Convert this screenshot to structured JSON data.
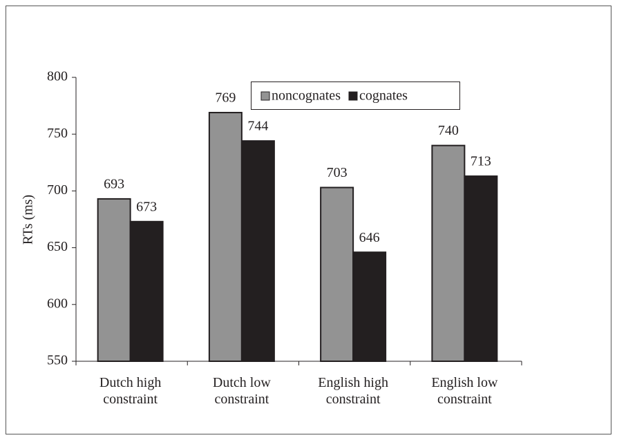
{
  "chart_data": {
    "type": "bar",
    "y_label": "RTs (ms)",
    "categories": [
      "Dutch high constraint",
      "Dutch low constraint",
      "English high constraint",
      "English low constraint"
    ],
    "series": [
      {
        "name": "noncognates",
        "color": "#939393",
        "values": [
          693,
          769,
          703,
          740
        ]
      },
      {
        "name": "cognates",
        "color": "#231f20",
        "values": [
          673,
          744,
          646,
          713
        ]
      }
    ],
    "ylim": [
      550,
      800
    ],
    "yticks": [
      550,
      600,
      650,
      700,
      750,
      800
    ],
    "legend": "top"
  }
}
